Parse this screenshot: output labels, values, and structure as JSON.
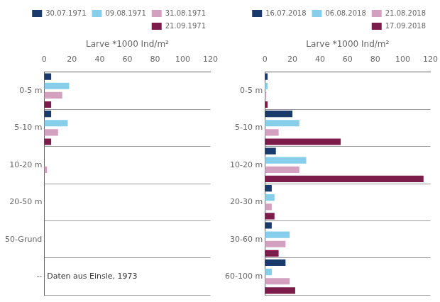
{
  "chart_data": [
    {
      "type": "bar",
      "orientation": "horizontal",
      "x_label": "Larve *1000 Ind/m²",
      "categories": [
        "0-5 m",
        "5-10 m",
        "10-20 m",
        "20-50 m",
        "50-Grund",
        "--"
      ],
      "series": [
        {
          "name": "30.07.1971",
          "color": "#1a3a6b",
          "values": [
            5,
            5,
            0,
            0,
            0,
            0
          ]
        },
        {
          "name": "09.08.1971",
          "color": "#87ceeb",
          "values": [
            18,
            17,
            0,
            0,
            0,
            0
          ]
        },
        {
          "name": "31.08.1971",
          "color": "#d4a0c0",
          "values": [
            13,
            10,
            2,
            0,
            0,
            0
          ]
        },
        {
          "name": "21.09.1971",
          "color": "#7b1c4b",
          "values": [
            5,
            5,
            0,
            0,
            0,
            0
          ]
        }
      ],
      "xlim": [
        0,
        120
      ],
      "xticks": [
        0,
        20,
        40,
        60,
        80,
        100,
        120
      ],
      "annotations": [
        {
          "text": "Daten aus Einsle, 1973",
          "x": 2,
          "y": "--"
        }
      ],
      "grid": true,
      "legend": "upper right"
    },
    {
      "type": "bar",
      "orientation": "horizontal",
      "x_label": "Larve *1000 Ind/m²",
      "categories": [
        "0-5 m",
        "5-10 m",
        "10-20 m",
        "20-30 m",
        "30-60 m",
        "60-100 m"
      ],
      "series": [
        {
          "name": "16.07.2018",
          "color": "#1a3a6b",
          "values": [
            2,
            20,
            8,
            5,
            5,
            15
          ]
        },
        {
          "name": "06.08.2018",
          "color": "#87ceeb",
          "values": [
            2,
            25,
            30,
            7,
            18,
            5
          ]
        },
        {
          "name": "21.08.2018",
          "color": "#d4a0c0",
          "values": [
            1,
            10,
            25,
            5,
            15,
            18
          ]
        },
        {
          "name": "17.09.2018",
          "color": "#7b1c4b",
          "values": [
            2,
            55,
            115,
            7,
            10,
            22
          ]
        }
      ],
      "xlim": [
        0,
        120
      ],
      "xticks": [
        0,
        20,
        40,
        60,
        80,
        100,
        120
      ],
      "grid": true,
      "legend": "upper right"
    }
  ]
}
